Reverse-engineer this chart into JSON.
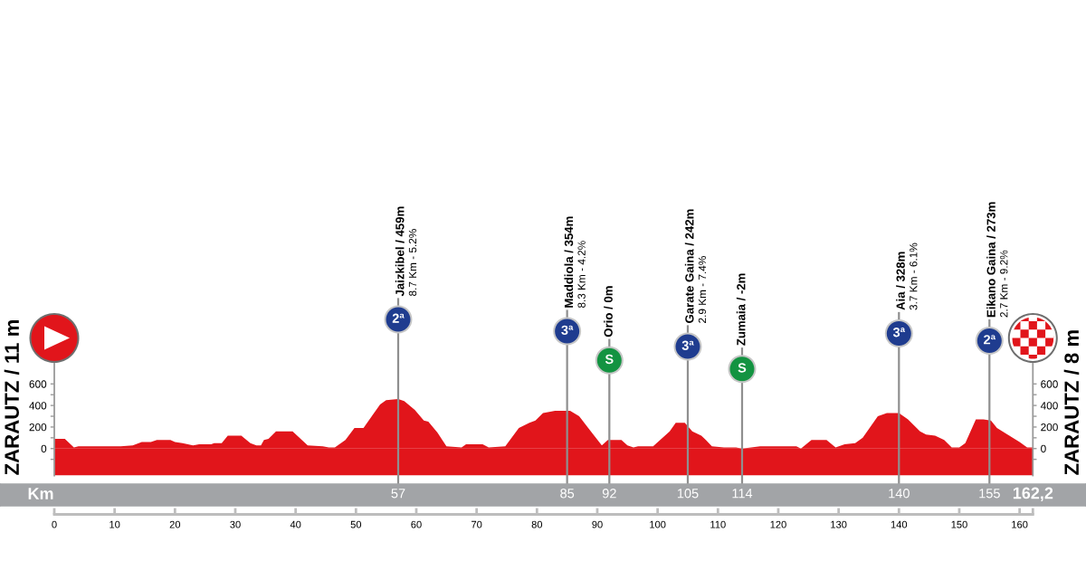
{
  "chart_data": {
    "type": "area",
    "color": "#e1151b",
    "x": [
      0,
      1.75,
      3.25,
      4,
      7,
      9,
      11,
      13,
      14.5,
      16,
      17,
      19.25,
      20,
      21.25,
      23,
      24,
      26,
      26.5,
      27.75,
      28.75,
      31,
      32.5,
      33.5,
      34.25,
      34.75,
      35.5,
      36.75,
      39.5,
      42,
      44.5,
      45.5,
      46.5,
      48.25,
      49.75,
      51.25,
      52.25,
      54,
      55,
      57,
      58,
      59.75,
      61.25,
      62,
      63.5,
      65,
      67.5,
      68.25,
      71,
      72,
      74.75,
      77,
      78.75,
      79.75,
      81,
      83,
      85.5,
      87,
      88.5,
      90.75,
      91.75,
      94,
      95,
      96,
      96.75,
      99.25,
      102,
      103,
      104.5,
      105.75,
      107.25,
      108,
      109,
      111,
      113,
      114,
      115.5,
      117,
      120,
      123,
      123.75,
      125.5,
      128,
      129.5,
      131,
      132.75,
      134,
      136.5,
      138,
      140,
      141.5,
      143.5,
      144.5,
      146,
      147.5,
      148.75,
      150,
      151,
      152.75,
      154,
      155.25,
      156.25,
      158,
      160,
      161.25,
      162.2
    ],
    "values": [
      90,
      90,
      10,
      20,
      20,
      20,
      20,
      30,
      60,
      60,
      80,
      80,
      60,
      50,
      30,
      40,
      40,
      50,
      50,
      120,
      120,
      50,
      30,
      30,
      80,
      90,
      160,
      160,
      30,
      20,
      10,
      10,
      80,
      190,
      190,
      270,
      410,
      450,
      460,
      440,
      360,
      260,
      250,
      150,
      20,
      10,
      40,
      40,
      10,
      20,
      190,
      240,
      260,
      330,
      350,
      350,
      300,
      190,
      30,
      80,
      80,
      30,
      10,
      20,
      20,
      160,
      240,
      240,
      160,
      120,
      80,
      20,
      10,
      10,
      0,
      10,
      20,
      20,
      20,
      0,
      80,
      80,
      10,
      40,
      50,
      100,
      300,
      330,
      330,
      270,
      160,
      130,
      120,
      80,
      10,
      10,
      50,
      270,
      270,
      260,
      190,
      130,
      60,
      10,
      10
    ],
    "bands": [
      {
        "axis": "y",
        "from": -250,
        "to": 0,
        "color": "#e1151b"
      }
    ],
    "xlim": [
      0,
      162.2
    ],
    "xticks": [
      0,
      10,
      20,
      30,
      40,
      50,
      60,
      70,
      80,
      90,
      100,
      110,
      120,
      130,
      140,
      150,
      160,
      {
        "value": 162.2,
        "label": null
      }
    ],
    "ylim": [
      -250,
      800
    ],
    "yticks": [
      {
        "value": -100,
        "label": null
      },
      0,
      {
        "value": 100,
        "label": null
      },
      200,
      {
        "value": 300,
        "label": null
      },
      400,
      {
        "value": 500,
        "label": null
      },
      600
    ],
    "y2lim": [
      -250,
      800
    ],
    "y2ticks": [
      {
        "value": -100,
        "label": null
      },
      0,
      {
        "value": 100,
        "label": null
      },
      200,
      {
        "value": 300,
        "label": null
      },
      400,
      {
        "value": 500,
        "label": null
      },
      600
    ],
    "ylabel": "ZARAUTZ / 11 m",
    "y2label": "ZARAUTZ / 8 m",
    "x2lim": [
      -9,
      171
    ],
    "x2ticks": [
      57,
      85,
      92,
      105,
      114,
      140,
      155,
      {
        "value": 162.2,
        "label": "162,2"
      }
    ],
    "x2label": "Km",
    "ref_lines": [
      {
        "axis": "x",
        "value": 57,
        "label": "Jaizkibel / 459m\n8.7 Km - 5.2%",
        "color": "#8f8f8f"
      },
      {
        "axis": "x",
        "value": 85,
        "label": "Maddiola / 354m\n8.3 Km - 4.2%",
        "color": "#8f8f8f"
      },
      {
        "axis": "x",
        "value": 92,
        "label": "Orio / 0m",
        "color": "#8f8f8f"
      },
      {
        "axis": "x",
        "value": 105,
        "label": "Garate Gaina / 242m\n2.9 Km - 7.4%",
        "color": "#8f8f8f"
      },
      {
        "axis": "x",
        "value": 114,
        "label": "Zumaia / -2m",
        "color": "#8f8f8f"
      },
      {
        "axis": "x",
        "value": 140,
        "label": "Aia / 328m\n3.7 Km - 6.1%",
        "color": "#8f8f8f"
      },
      {
        "axis": "x",
        "value": 155,
        "label": "Eikano Gaina / 273m\n2.7 Km - 9.2%",
        "color": "#8f8f8f"
      }
    ],
    "annotations": [
      "2ª",
      "3ª",
      "S",
      "3ª",
      "S",
      "3ª",
      "2ª"
    ]
  }
}
